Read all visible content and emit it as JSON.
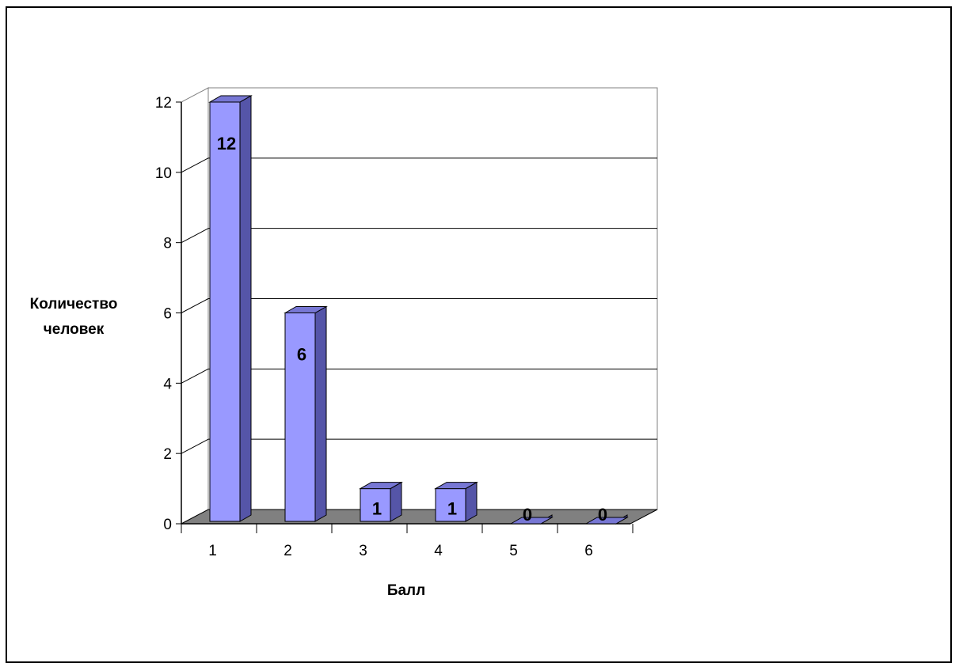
{
  "chart_data": {
    "type": "bar",
    "style": "3d-column",
    "categories": [
      "1",
      "2",
      "3",
      "4",
      "5",
      "6"
    ],
    "values": [
      12,
      6,
      1,
      1,
      0,
      0
    ],
    "data_labels": [
      "12",
      "6",
      "1",
      "1",
      "0",
      "0"
    ],
    "xlabel": "Балл",
    "ylabel_lines": [
      "Количество",
      "человек"
    ],
    "ylim": [
      0,
      12
    ],
    "y_ticks": [
      "0",
      "2",
      "4",
      "6",
      "8",
      "10",
      "12"
    ],
    "grid": true,
    "legend": "none",
    "colors": {
      "bar_front": "#9999ff",
      "bar_side": "#5555a8",
      "bar_top": "#7777d4",
      "floor": "#808080",
      "gridline": "#000000",
      "wall": "#ffffff"
    }
  }
}
